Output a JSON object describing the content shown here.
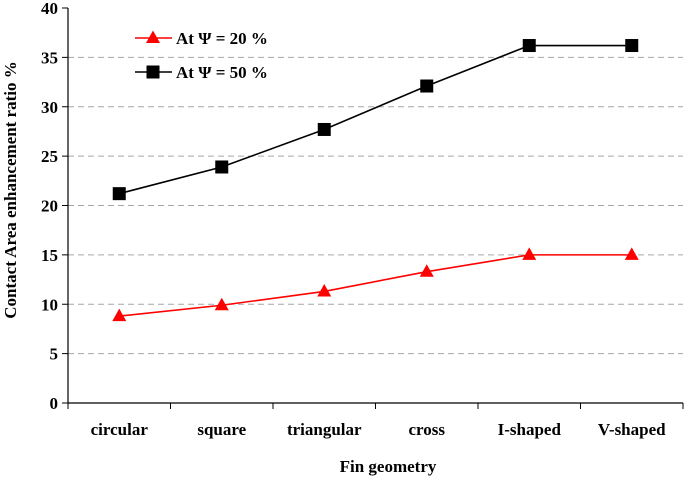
{
  "chart_data": {
    "type": "line",
    "categories": [
      "circular",
      "square",
      "triangular",
      "cross",
      "I-shaped",
      "V-shaped"
    ],
    "series": [
      {
        "name": "At Ψ = 20 %",
        "values": [
          8.8,
          9.9,
          11.3,
          13.3,
          15.0,
          15.0
        ],
        "color": "#ff0000",
        "marker": "triangle"
      },
      {
        "name": "At Ψ = 50 %",
        "values": [
          21.2,
          23.9,
          27.7,
          32.1,
          36.2,
          36.2
        ],
        "color": "#000000",
        "marker": "square"
      }
    ],
    "xlabel": "Fin geometry",
    "ylabel": "Contact Area enhancement ratio %",
    "ylim": [
      0,
      40
    ],
    "yticks": [
      "0",
      "5",
      "10",
      "15",
      "20",
      "25",
      "30",
      "35",
      "40"
    ],
    "grid": "horizontal dashed",
    "legend_position": "top-left"
  }
}
